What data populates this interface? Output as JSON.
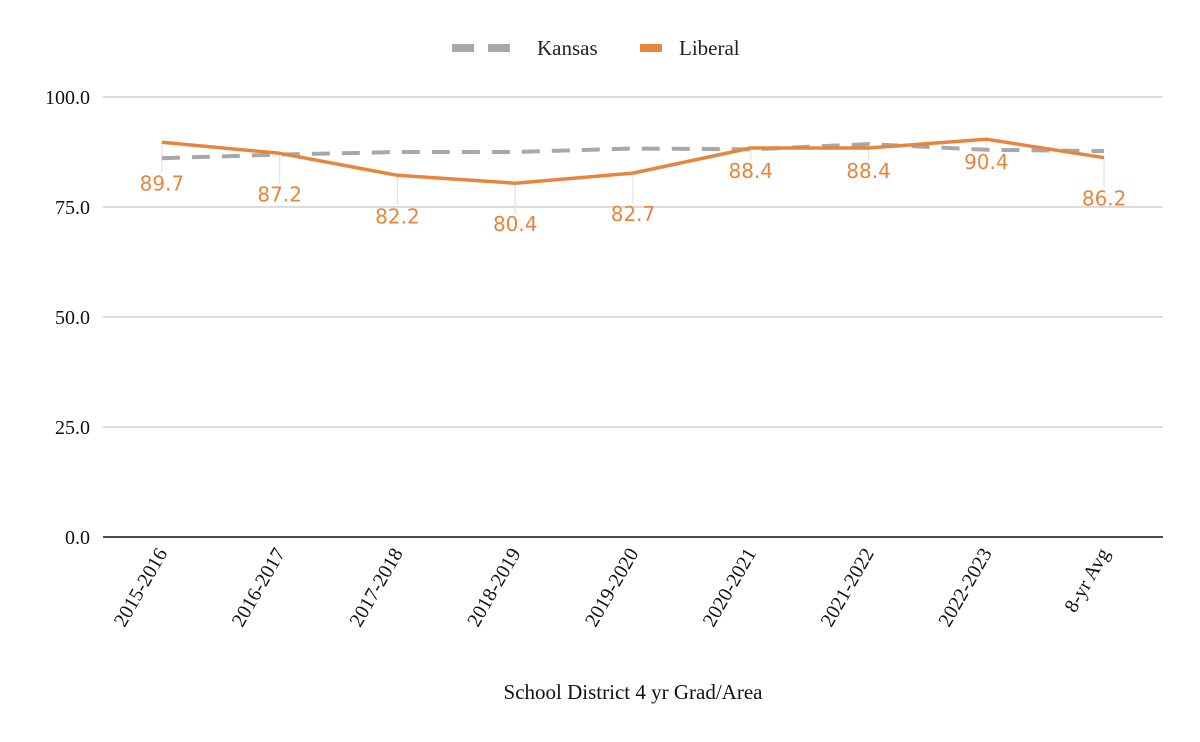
{
  "chart_data": {
    "type": "line",
    "categories": [
      "2015-2016",
      "2016-2017",
      "2017-2018",
      "2018-2019",
      "2019-2020",
      "2020-2021",
      "2021-2022",
      "2022-2023",
      "8-yr Avg"
    ],
    "series": [
      {
        "name": "Kansas",
        "values": [
          86.1,
          86.9,
          87.5,
          87.5,
          88.3,
          88.1,
          89.3,
          88.0,
          87.7
        ],
        "color": "#a8a8a8",
        "style": "dashed",
        "data_labels": false
      },
      {
        "name": "Liberal",
        "values": [
          89.7,
          87.2,
          82.2,
          80.4,
          82.7,
          88.4,
          88.4,
          90.4,
          86.2
        ],
        "color": "#e8853d",
        "style": "solid",
        "data_labels": true
      }
    ],
    "data_labels": [
      "89.7",
      "87.2",
      "82.2",
      "80.4",
      "82.7",
      "88.4",
      "88.4",
      "90.4",
      "86.2"
    ],
    "yticks": [
      "0.0",
      "25.0",
      "50.0",
      "75.0",
      "100.0"
    ],
    "ylim": [
      0,
      100
    ],
    "xlabel": "School District 4 yr Grad/Area",
    "ylabel": "",
    "title": "",
    "grid": true,
    "legend": "top-center"
  }
}
